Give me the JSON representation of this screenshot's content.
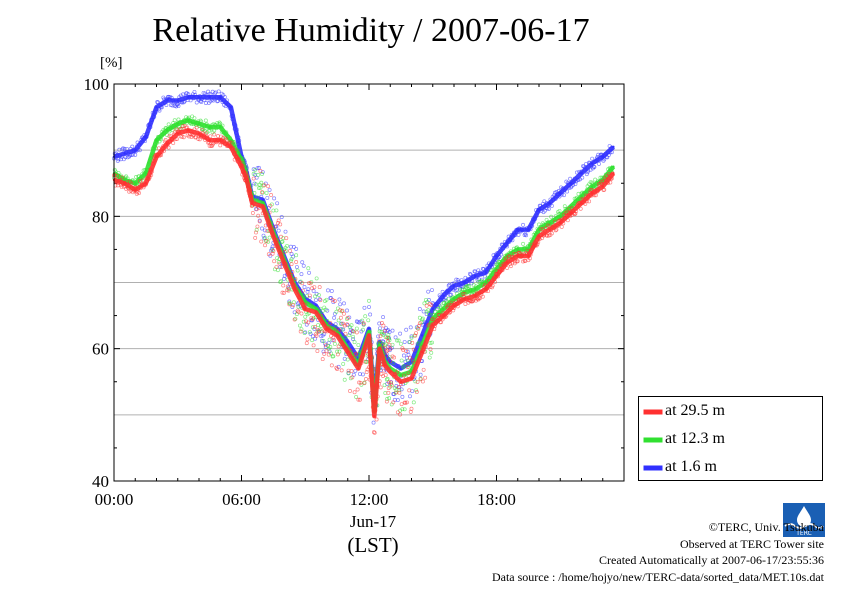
{
  "chart_data": {
    "type": "line",
    "title": "Relative Humidity / 2007-06-17",
    "ylabel": "[%]",
    "ylim": [
      40,
      100
    ],
    "yticks": [
      "40",
      "60",
      "80",
      "100"
    ],
    "xlim": [
      0,
      24
    ],
    "xticks": [
      "00:00",
      "06:00",
      "12:00",
      "18:00"
    ],
    "xlabel_date": "Jun-17",
    "xlabel_tz": "(LST)",
    "grid": "horizontal",
    "legend_position": "bottom-right outside",
    "series": [
      {
        "name": "at 29.5 m",
        "color": "#ff3030",
        "x": [
          0,
          0.5,
          1,
          1.5,
          2,
          2.5,
          3,
          3.5,
          4,
          4.5,
          5,
          5.5,
          6,
          6.25,
          6.5,
          7,
          7.5,
          8,
          8.5,
          9,
          9.5,
          10,
          10.5,
          11,
          11.5,
          12,
          12.25,
          12.5,
          12.75,
          13,
          13.5,
          14,
          14.5,
          15,
          15.5,
          16,
          16.5,
          17,
          17.5,
          18,
          18.5,
          19,
          19.5,
          20,
          20.5,
          21,
          21.5,
          22,
          22.5,
          23,
          23.5
        ],
        "values": [
          85.5,
          85,
          84,
          85,
          89,
          91,
          92.5,
          93,
          92.5,
          91.5,
          91.5,
          90.5,
          87.5,
          85.5,
          82,
          81.5,
          77,
          73,
          69,
          66,
          65.5,
          63,
          62,
          59.5,
          57,
          62,
          49.8,
          60,
          57.5,
          56.5,
          55,
          55.5,
          59.5,
          63.5,
          65,
          66.5,
          67.5,
          68,
          69,
          71,
          73,
          74,
          74,
          77,
          78,
          79,
          80.5,
          82,
          83.5,
          84.5,
          86.5
        ]
      },
      {
        "name": "at 12.3 m",
        "color": "#30e030",
        "x": [
          0,
          0.5,
          1,
          1.5,
          2,
          2.5,
          3,
          3.5,
          4,
          4.5,
          5,
          5.5,
          6,
          6.25,
          6.5,
          7,
          7.5,
          8,
          8.5,
          9,
          9.5,
          10,
          10.5,
          11,
          11.5,
          12,
          12.25,
          12.5,
          12.75,
          13,
          13.5,
          14,
          14.5,
          15,
          15.5,
          16,
          16.5,
          17,
          17.5,
          18,
          18.5,
          19,
          19.5,
          20,
          20.5,
          21,
          21.5,
          22,
          22.5,
          23,
          23.5
        ],
        "values": [
          86.5,
          85.5,
          85,
          86.5,
          91.5,
          93,
          94,
          94.5,
          94,
          93.5,
          93.5,
          91.5,
          88.5,
          86,
          82.5,
          82,
          77.5,
          73.5,
          69.5,
          67,
          66,
          63.5,
          62.5,
          60,
          57.5,
          62.5,
          50.5,
          60.5,
          58,
          57,
          56,
          56.5,
          60.5,
          64.5,
          66,
          67.5,
          68.5,
          69,
          70,
          72,
          74,
          75,
          75,
          78,
          79,
          80,
          81.5,
          83,
          84.5,
          85.5,
          87.5
        ]
      },
      {
        "name": "at 1.6 m",
        "color": "#3030ff",
        "x": [
          0,
          0.5,
          1,
          1.5,
          2,
          2.5,
          3,
          3.5,
          4,
          4.5,
          5,
          5.5,
          6,
          6.25,
          6.5,
          7,
          7.5,
          8,
          8.5,
          9,
          9.5,
          10,
          10.5,
          11,
          11.5,
          12,
          12.25,
          12.5,
          12.75,
          13,
          13.5,
          14,
          14.5,
          15,
          15.5,
          16,
          16.5,
          17,
          17.5,
          18,
          18.5,
          19,
          19.5,
          20,
          20.5,
          21,
          21.5,
          22,
          22.5,
          23,
          23.5
        ],
        "values": [
          89,
          89.5,
          90,
          92,
          96.5,
          97.5,
          97.5,
          98,
          98,
          98,
          98,
          96.5,
          89,
          86.5,
          83,
          82.5,
          78,
          74,
          70,
          67.5,
          66.5,
          64,
          63,
          61,
          58.5,
          63,
          51.5,
          61,
          59,
          58,
          57,
          58,
          62,
          66,
          68,
          69.5,
          70,
          71,
          71.5,
          74,
          76,
          78,
          78,
          81,
          82,
          83.5,
          85,
          86.5,
          88,
          89,
          90.5
        ]
      }
    ]
  },
  "credits": {
    "copyright": "©TERC, Univ. Tsukuba",
    "observed": "Observed at TERC Tower site",
    "created": "Created Automatically at 2007-06-17/23:55:36",
    "source": "Data source : /home/hojyo/new/TERC-data/sorted_data/MET.10s.dat",
    "logo_text": "TERC"
  }
}
